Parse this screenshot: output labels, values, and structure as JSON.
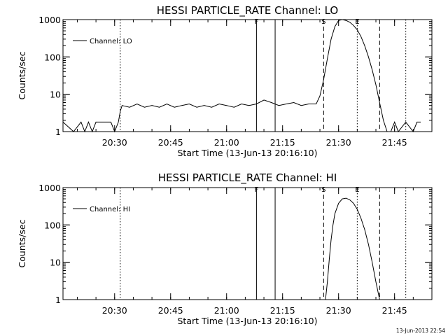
{
  "stamp": "13-Jun-2013 22:54",
  "chart_data": [
    {
      "type": "line",
      "title": "HESSI PARTICLE_RATE Channel: LO",
      "xlabel": "Start Time (13-Jun-13 20:16:10)",
      "ylabel": "Counts/sec",
      "y_scale": "log",
      "ylim": [
        1,
        1000
      ],
      "y_ticks": [
        "1",
        "10",
        "100",
        "1000"
      ],
      "xlim": [
        "20:16:10",
        "21:55:00"
      ],
      "x_ticks": [
        "20:30",
        "20:45",
        "21:00",
        "21:15",
        "21:30",
        "21:45"
      ],
      "legend": "top-left",
      "grid": false,
      "series": [
        {
          "name": "Channel: LO",
          "x": [
            "20:16:10",
            "20:19:00",
            "20:21:00",
            "20:22:00",
            "20:23:00",
            "20:24:00",
            "20:25:00",
            "20:26:00",
            "20:27:00",
            "20:28:00",
            "20:29:00",
            "20:30:00",
            "20:31:00",
            "20:31:30",
            "20:32:00",
            "20:34:00",
            "20:36:00",
            "20:38:00",
            "20:40:00",
            "20:42:00",
            "20:44:00",
            "20:46:00",
            "20:48:00",
            "20:50:00",
            "20:52:00",
            "20:54:00",
            "20:56:00",
            "20:58:00",
            "21:00:00",
            "21:02:00",
            "21:04:00",
            "21:06:00",
            "21:08:00",
            "21:10:00",
            "21:12:00",
            "21:14:00",
            "21:16:00",
            "21:18:00",
            "21:20:00",
            "21:22:00",
            "21:24:00",
            "21:25:00",
            "21:26:00",
            "21:27:00",
            "21:28:00",
            "21:29:00",
            "21:30:00",
            "21:31:00",
            "21:32:00",
            "21:33:00",
            "21:34:00",
            "21:35:00",
            "21:36:00",
            "21:37:00",
            "21:38:00",
            "21:39:00",
            "21:40:00",
            "21:41:00",
            "21:42:00",
            "21:43:00",
            "21:44:00",
            "21:45:00",
            "21:46:00",
            "21:48:00",
            "21:50:00",
            "21:51:00",
            "21:52:00"
          ],
          "values": [
            1.8,
            1.0,
            1.8,
            1.0,
            1.8,
            1.0,
            1.8,
            1.8,
            1.8,
            1.8,
            1.8,
            1.0,
            1.8,
            3.5,
            5.0,
            4.5,
            5.5,
            4.5,
            5.0,
            4.5,
            5.5,
            4.5,
            5.0,
            5.5,
            4.5,
            5.0,
            4.5,
            5.5,
            5.0,
            4.5,
            5.5,
            5.0,
            5.5,
            7.0,
            6.0,
            5.0,
            5.5,
            6.0,
            5.0,
            5.5,
            5.5,
            9.0,
            25,
            90,
            300,
            650,
            950,
            1000,
            950,
            850,
            700,
            530,
            350,
            200,
            100,
            45,
            18,
            6.0,
            2.0,
            1.0,
            1.0,
            1.8,
            1.0,
            1.8,
            1.0,
            1.8,
            1.8
          ]
        }
      ],
      "markers": [
        {
          "time": "20:31:30",
          "style": "dotted",
          "label": ""
        },
        {
          "time": "21:08:00",
          "style": "solid",
          "label": "F"
        },
        {
          "time": "21:13:00",
          "style": "solid",
          "label": ""
        },
        {
          "time": "21:26:00",
          "style": "dashed",
          "label": "S"
        },
        {
          "time": "21:35:00",
          "style": "dotted",
          "label": "E"
        },
        {
          "time": "21:41:00",
          "style": "dashed",
          "label": ""
        },
        {
          "time": "21:48:00",
          "style": "dotted",
          "label": ""
        }
      ]
    },
    {
      "type": "line",
      "title": "HESSI PARTICLE_RATE Channel: HI",
      "xlabel": "Start Time (13-Jun-13 20:16:10)",
      "ylabel": "Counts/sec",
      "y_scale": "log",
      "ylim": [
        1,
        1000
      ],
      "y_ticks": [
        "1",
        "10",
        "100",
        "1000"
      ],
      "xlim": [
        "20:16:10",
        "21:55:00"
      ],
      "x_ticks": [
        "20:30",
        "20:45",
        "21:00",
        "21:15",
        "21:30",
        "21:45"
      ],
      "legend": "top-left",
      "grid": false,
      "series": [
        {
          "name": "Channel: HI",
          "x": [
            "21:26:30",
            "21:27:00",
            "21:27:30",
            "21:28:00",
            "21:28:30",
            "21:29:00",
            "21:30:00",
            "21:31:00",
            "21:32:00",
            "21:33:00",
            "21:34:00",
            "21:35:00",
            "21:36:00",
            "21:37:00",
            "21:38:00",
            "21:39:00",
            "21:40:00",
            "21:41:00"
          ],
          "values": [
            1.0,
            3,
            12,
            40,
            100,
            200,
            380,
            500,
            520,
            470,
            380,
            260,
            150,
            75,
            30,
            10,
            3,
            1.0
          ]
        }
      ],
      "markers": [
        {
          "time": "20:31:30",
          "style": "dotted",
          "label": ""
        },
        {
          "time": "21:08:00",
          "style": "solid",
          "label": "F"
        },
        {
          "time": "21:13:00",
          "style": "solid",
          "label": ""
        },
        {
          "time": "21:26:00",
          "style": "dashed",
          "label": "S"
        },
        {
          "time": "21:35:00",
          "style": "dotted",
          "label": "E"
        },
        {
          "time": "21:41:00",
          "style": "dashed",
          "label": ""
        },
        {
          "time": "21:48:00",
          "style": "dotted",
          "label": ""
        }
      ]
    }
  ]
}
